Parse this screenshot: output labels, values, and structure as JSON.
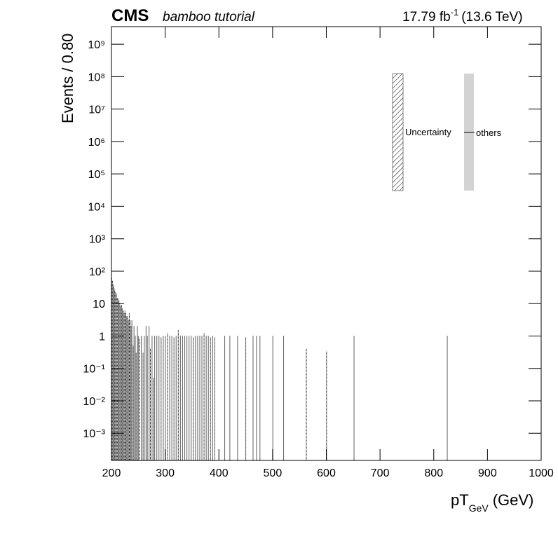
{
  "chart_data": {
    "type": "histogram",
    "experiment": "CMS",
    "subtitle": "bamboo tutorial",
    "lumi": "17.79 fb",
    "lumi_exp": "-1",
    "energy": "(13.6 TeV)",
    "ylabel": "Events / 0.80",
    "xlabel": "pT",
    "xlabel_sub": "GeV",
    "xlabel_unit": "(GeV)",
    "log_y": true,
    "xlim": [
      200,
      1000
    ],
    "xticks": [
      200,
      300,
      400,
      500,
      600,
      700,
      800,
      900,
      1000
    ],
    "ylim": [
      0.000145,
      3500000000
    ],
    "yticks": [
      {
        "value": 0.001,
        "label": "10⁻³"
      },
      {
        "value": 0.01,
        "label": "10⁻²"
      },
      {
        "value": 0.1,
        "label": "10⁻¹"
      },
      1,
      10,
      {
        "value": 100,
        "label": "10²"
      },
      {
        "value": 1000,
        "label": "10³"
      },
      {
        "value": 10000,
        "label": "10⁴"
      },
      {
        "value": 100000,
        "label": "10⁵"
      },
      {
        "value": 1000000,
        "label": "10⁶"
      },
      {
        "value": 10000000,
        "label": "10⁷"
      },
      {
        "value": 100000000,
        "label": "10⁸"
      },
      {
        "value": 1000000000,
        "label": "10⁹"
      }
    ],
    "legend": [
      "Uncertainty"
    ],
    "series": [
      {
        "name": "others",
        "color": "#d3d3d3",
        "x": [
          200.4,
          201.2,
          202,
          202.8,
          203.6,
          204.4,
          205.2,
          206,
          207.6,
          209.2,
          210.8,
          212.4,
          214,
          215.6,
          217.2,
          218.8,
          220.4,
          222,
          223.6,
          225.2,
          226.8,
          228.4,
          230,
          231.6,
          233.2,
          234.8,
          236.4,
          238,
          240.4,
          242,
          244.4,
          246,
          248.4,
          250,
          252.4,
          255.6,
          258.8,
          261.2,
          264.4,
          266.8,
          270,
          272.4,
          275.6,
          278,
          280.4,
          284.4,
          288.4,
          292.4,
          296.4,
          300.4,
          304.4,
          308.4,
          312.4,
          316.4,
          320.4,
          324.4,
          328.4,
          332.4,
          336.4,
          340.4,
          344.4,
          348.4,
          352.4,
          356.4,
          360.4,
          364.4,
          368.4,
          372.4,
          376.4,
          380.4,
          384.4,
          388.4,
          392.4,
          410.8,
          420.4,
          434.8,
          450,
          463.6,
          470,
          476.4,
          500.4,
          520.4,
          562.8,
          600.4,
          651.6,
          825.2
        ],
        "values": [
          60,
          45,
          50,
          40,
          35,
          30,
          28,
          25,
          22,
          20,
          15,
          14,
          12,
          10,
          8,
          9,
          7,
          6,
          5,
          6,
          5,
          4,
          4,
          3,
          5,
          3,
          2,
          3,
          0.5,
          2,
          1,
          0.3,
          2,
          1,
          0.8,
          1,
          0.3,
          1,
          2,
          1,
          2,
          0.4,
          1,
          0.05,
          1,
          1,
          1,
          0.9,
          1,
          1,
          1.2,
          1,
          1,
          0.9,
          1,
          1.5,
          1,
          1,
          1,
          1,
          1,
          1,
          0.9,
          1,
          1,
          1,
          1,
          1.2,
          1,
          1,
          0.9,
          1,
          0.9,
          1,
          1,
          1,
          0.9,
          1,
          1,
          1,
          1,
          1,
          0.4,
          0.33,
          1,
          1
        ]
      }
    ]
  }
}
